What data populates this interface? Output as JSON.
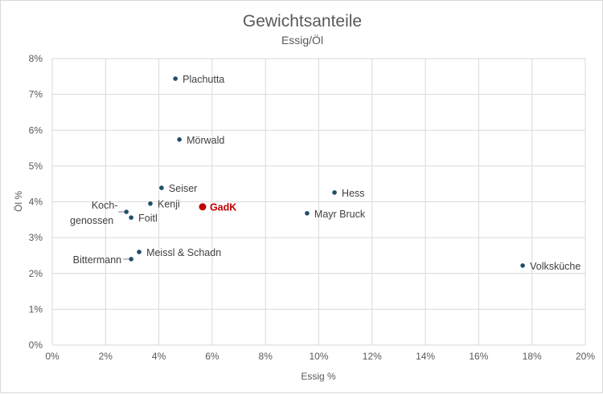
{
  "chart_data": {
    "type": "scatter",
    "title": "Gewichtsanteile",
    "subtitle": "Essig/Öl",
    "xlabel": "Essig %",
    "ylabel": "Öl %",
    "xlim": [
      0,
      20
    ],
    "ylim": [
      0,
      8
    ],
    "xticks": [
      0,
      2,
      4,
      6,
      8,
      10,
      12,
      14,
      16,
      18,
      20
    ],
    "yticks": [
      0,
      1,
      2,
      3,
      4,
      5,
      6,
      7,
      8
    ],
    "tick_suffix": "%",
    "grid": true,
    "colors": {
      "default": "#1f5068",
      "highlight": "#c00000"
    },
    "points": [
      {
        "label": "Plachutta",
        "x": 4.62,
        "y": 7.44,
        "pos": "right"
      },
      {
        "label": "Mörwald",
        "x": 4.77,
        "y": 5.74,
        "pos": "right"
      },
      {
        "label": "Seiser",
        "x": 4.1,
        "y": 4.39,
        "pos": "right"
      },
      {
        "label": "Kenji",
        "x": 3.68,
        "y": 3.95,
        "pos": "right"
      },
      {
        "label": "GadK",
        "x": 5.64,
        "y": 3.86,
        "pos": "right",
        "highlight": true
      },
      {
        "label": "Koch-|genossen",
        "x": 2.78,
        "y": 3.72,
        "pos": "left"
      },
      {
        "label": "Foitl",
        "x": 2.96,
        "y": 3.56,
        "pos": "right"
      },
      {
        "label": "Meissl & Schadn",
        "x": 3.26,
        "y": 2.6,
        "pos": "right"
      },
      {
        "label": "Bittermann",
        "x": 2.96,
        "y": 2.4,
        "pos": "left"
      },
      {
        "label": "Hess",
        "x": 10.59,
        "y": 4.26,
        "pos": "right"
      },
      {
        "label": "Mayr Bruck",
        "x": 9.56,
        "y": 3.68,
        "pos": "right"
      },
      {
        "label": "Volksküche",
        "x": 17.65,
        "y": 2.22,
        "pos": "right"
      }
    ]
  }
}
